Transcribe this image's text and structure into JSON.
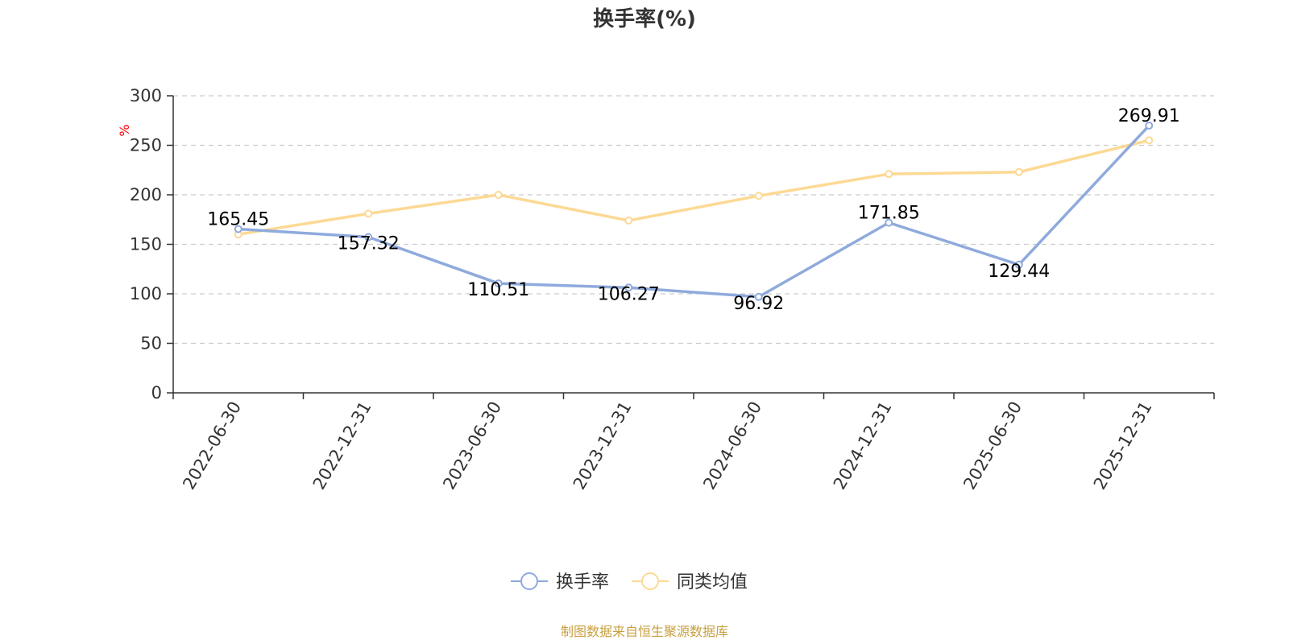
{
  "chart_data": {
    "type": "line",
    "title": "换手率(%)",
    "ylabel": "%",
    "xlabel": "",
    "ylim": [
      0,
      300
    ],
    "yticks": [
      0,
      50,
      100,
      150,
      200,
      250,
      300
    ],
    "categories": [
      "2022-06-30",
      "2022-12-31",
      "2023-06-30",
      "2023-12-31",
      "2024-06-30",
      "2024-12-31",
      "2025-06-30",
      "2025-12-31"
    ],
    "series": [
      {
        "name": "换手率",
        "color": "#8faadc",
        "values": [
          165.45,
          157.32,
          110.51,
          106.27,
          96.92,
          171.85,
          129.44,
          269.91
        ],
        "labels": [
          "165.45",
          "157.32",
          "110.51",
          "106.27",
          "96.92",
          "171.85",
          "129.44",
          "269.91"
        ],
        "show_labels": true
      },
      {
        "name": "同类均值",
        "color": "#fcd994",
        "values": [
          160,
          181,
          200,
          174,
          199,
          221,
          223,
          255
        ],
        "show_labels": false
      }
    ],
    "grid": true,
    "legend_position": "bottom-center",
    "source": "制图数据来自恒生聚源数据库"
  }
}
